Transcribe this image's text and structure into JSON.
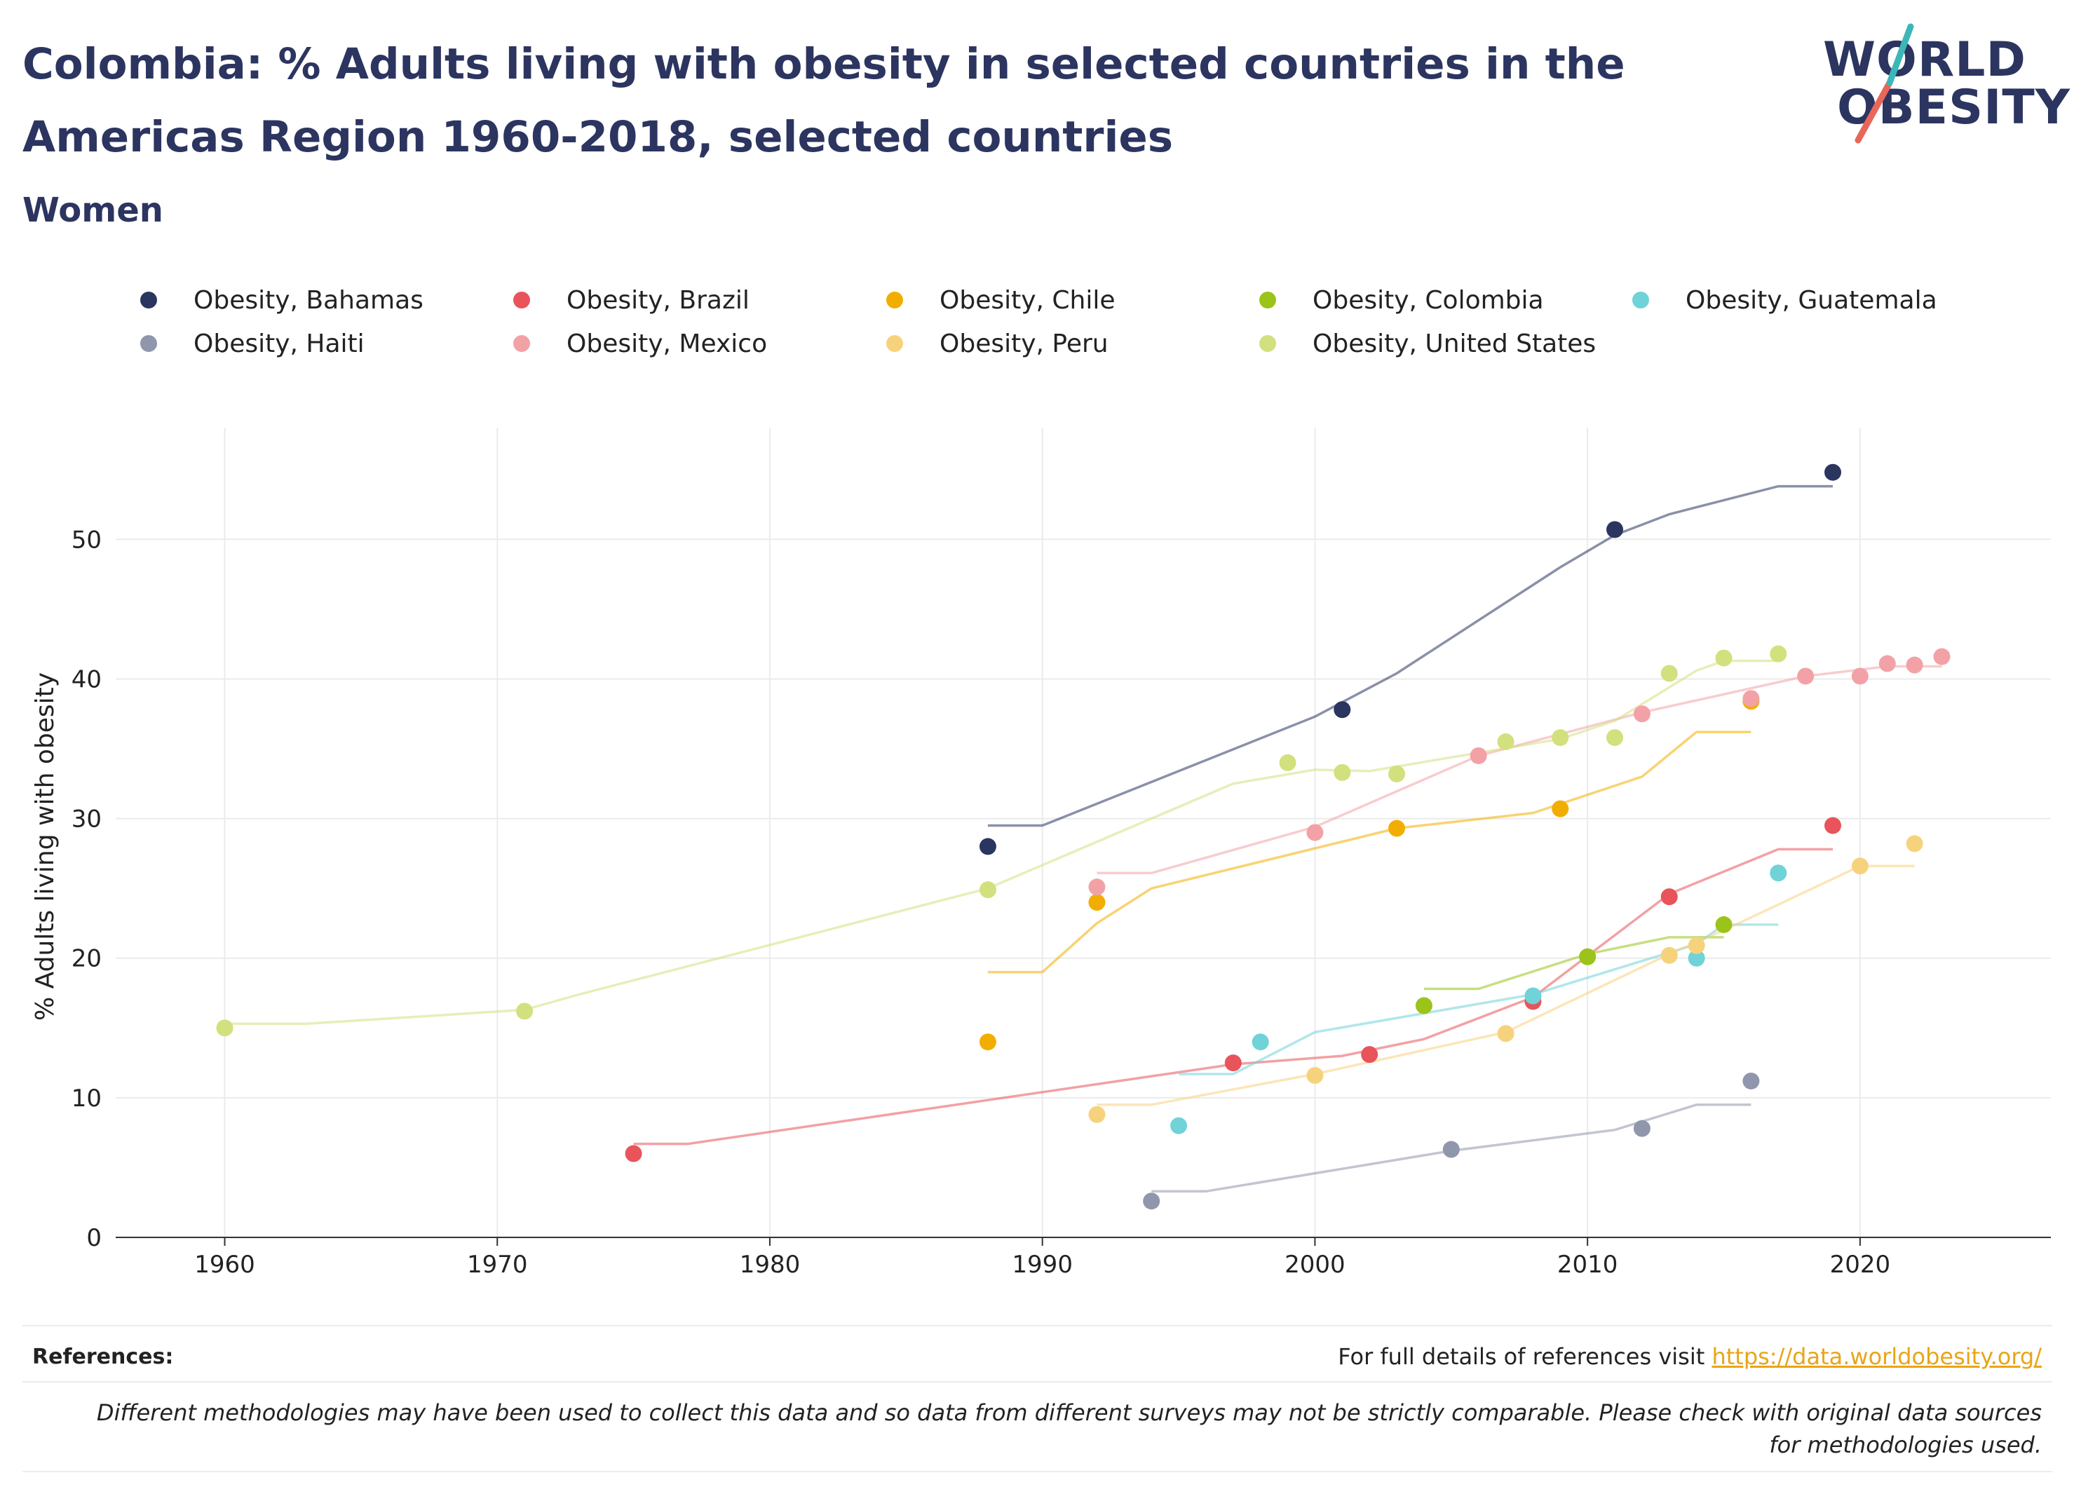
{
  "header": {
    "title": "Colombia: % Adults living with obesity in selected countries in the Americas Region 1960-2018, selected countries",
    "subtitle": "Women"
  },
  "logo": {
    "line1": "WORLD",
    "line2": "OBESITY"
  },
  "footer": {
    "references_label": "References:",
    "references_text": "For full details of references visit ",
    "references_link": "https://data.worldobesity.org/",
    "disclaimer": "Different methodologies may have been used to collect this data and so data from different surveys may not be strictly comparable. Please check with original data sources for methodologies used."
  },
  "colors": {
    "title": "#2c3560",
    "link": "#e8a517",
    "grid": "#ebebeb",
    "axis": "#333333"
  },
  "chart_data": {
    "type": "scatter",
    "title": "Colombia: % Adults living with obesity in selected countries in the Americas Region 1960-2018, selected countries",
    "subtitle": "Women",
    "xlabel": "",
    "ylabel": "% Adults living with obesity",
    "xlim": [
      1956,
      2027
    ],
    "ylim": [
      0,
      58
    ],
    "xticks": [
      1960,
      1970,
      1980,
      1990,
      2000,
      2010,
      2020
    ],
    "yticks": [
      0,
      10,
      20,
      30,
      40,
      50
    ],
    "grid": true,
    "legend_position": "top",
    "series": [
      {
        "name": "Obesity, Bahamas",
        "color": "#2a3560",
        "points": [
          [
            1988,
            28.0
          ],
          [
            2001,
            37.8
          ],
          [
            2011,
            50.7
          ],
          [
            2019,
            54.8
          ]
        ],
        "trend": [
          [
            1988,
            29.5
          ],
          [
            1990,
            29.5
          ],
          [
            2000,
            37.3
          ],
          [
            2003,
            40.4
          ],
          [
            2009,
            48.0
          ],
          [
            2011,
            50.3
          ],
          [
            2013,
            51.8
          ],
          [
            2017,
            53.8
          ],
          [
            2019,
            53.8
          ]
        ]
      },
      {
        "name": "Obesity, Brazil",
        "color": "#e8545a",
        "points": [
          [
            1975,
            6.0
          ],
          [
            1997,
            12.5
          ],
          [
            2002,
            13.1
          ],
          [
            2008,
            16.9
          ],
          [
            2013,
            24.4
          ],
          [
            2019,
            29.5
          ]
        ],
        "trend": [
          [
            1975,
            6.7
          ],
          [
            1977,
            6.7
          ],
          [
            1997,
            12.4
          ],
          [
            2001,
            13.0
          ],
          [
            2004,
            14.2
          ],
          [
            2008,
            17.2
          ],
          [
            2013,
            24.6
          ],
          [
            2017,
            27.8
          ],
          [
            2019,
            27.8
          ]
        ]
      },
      {
        "name": "Obesity, Chile",
        "color": "#f2ae00",
        "points": [
          [
            1988,
            14.0
          ],
          [
            1992,
            24.0
          ],
          [
            2003,
            29.3
          ],
          [
            2009,
            30.7
          ],
          [
            2016,
            38.4
          ]
        ],
        "trend": [
          [
            1988,
            19.0
          ],
          [
            1990,
            19.0
          ],
          [
            1992,
            22.5
          ],
          [
            1994,
            25.0
          ],
          [
            2003,
            29.3
          ],
          [
            2008,
            30.4
          ],
          [
            2012,
            33.0
          ],
          [
            2014,
            36.2
          ],
          [
            2016,
            36.2
          ]
        ]
      },
      {
        "name": "Obesity, Colombia",
        "color": "#9bc31a",
        "points": [
          [
            2004,
            16.6
          ],
          [
            2010,
            20.1
          ],
          [
            2015,
            22.4
          ]
        ],
        "trend": [
          [
            2004,
            17.8
          ],
          [
            2006,
            17.8
          ],
          [
            2010,
            20.3
          ],
          [
            2013,
            21.5
          ],
          [
            2015,
            21.5
          ]
        ]
      },
      {
        "name": "Obesity, Guatemala",
        "color": "#6fd3d8",
        "points": [
          [
            1995,
            8.0
          ],
          [
            1998,
            14.0
          ],
          [
            2008,
            17.3
          ],
          [
            2014,
            20.0
          ],
          [
            2017,
            26.1
          ]
        ],
        "trend": [
          [
            1995,
            11.7
          ],
          [
            1997,
            11.7
          ],
          [
            2000,
            14.7
          ],
          [
            2008,
            17.4
          ],
          [
            2014,
            21.0
          ],
          [
            2015,
            22.4
          ],
          [
            2017,
            22.4
          ]
        ]
      },
      {
        "name": "Obesity, Haiti",
        "color": "#9096ab",
        "points": [
          [
            1994,
            2.6
          ],
          [
            2005,
            6.3
          ],
          [
            2012,
            7.8
          ],
          [
            2016,
            11.2
          ]
        ],
        "trend": [
          [
            1994,
            3.3
          ],
          [
            1996,
            3.3
          ],
          [
            2005,
            6.2
          ],
          [
            2011,
            7.7
          ],
          [
            2014,
            9.5
          ],
          [
            2016,
            9.5
          ]
        ]
      },
      {
        "name": "Obesity, Mexico",
        "color": "#f2a2a6",
        "points": [
          [
            1992,
            25.1
          ],
          [
            2000,
            29.0
          ],
          [
            2006,
            34.5
          ],
          [
            2012,
            37.5
          ],
          [
            2016,
            38.6
          ],
          [
            2018,
            40.2
          ],
          [
            2020,
            40.2
          ],
          [
            2021,
            41.1
          ],
          [
            2022,
            41.0
          ],
          [
            2023,
            41.6
          ]
        ],
        "trend": [
          [
            1992,
            26.1
          ],
          [
            1994,
            26.1
          ],
          [
            2000,
            29.4
          ],
          [
            2006,
            34.5
          ],
          [
            2012,
            37.6
          ],
          [
            2018,
            40.2
          ],
          [
            2021,
            40.9
          ],
          [
            2023,
            40.9
          ]
        ]
      },
      {
        "name": "Obesity, Peru",
        "color": "#f7d27d",
        "points": [
          [
            1992,
            8.8
          ],
          [
            2000,
            11.6
          ],
          [
            2007,
            14.6
          ],
          [
            2013,
            20.2
          ],
          [
            2014,
            20.9
          ],
          [
            2020,
            26.6
          ],
          [
            2022,
            28.2
          ]
        ],
        "trend": [
          [
            1992,
            9.5
          ],
          [
            1994,
            9.5
          ],
          [
            2000,
            11.7
          ],
          [
            2007,
            14.7
          ],
          [
            2013,
            20.3
          ],
          [
            2015,
            22.0
          ],
          [
            2020,
            26.6
          ],
          [
            2022,
            26.6
          ]
        ]
      },
      {
        "name": "Obesity, United States",
        "color": "#d3e07e",
        "points": [
          [
            1960,
            15.0
          ],
          [
            1971,
            16.2
          ],
          [
            1988,
            24.9
          ],
          [
            1999,
            34.0
          ],
          [
            2001,
            33.3
          ],
          [
            2003,
            33.2
          ],
          [
            2007,
            35.5
          ],
          [
            2009,
            35.8
          ],
          [
            2011,
            35.8
          ],
          [
            2013,
            40.4
          ],
          [
            2015,
            41.5
          ],
          [
            2017,
            41.8
          ]
        ],
        "trend": [
          [
            1960,
            15.3
          ],
          [
            1963,
            15.3
          ],
          [
            1971,
            16.3
          ],
          [
            1973,
            17.4
          ],
          [
            1988,
            25.0
          ],
          [
            1997,
            32.5
          ],
          [
            2000,
            33.5
          ],
          [
            2002,
            33.4
          ],
          [
            2009,
            35.7
          ],
          [
            2011,
            37.0
          ],
          [
            2014,
            40.6
          ],
          [
            2015,
            41.3
          ],
          [
            2017,
            41.3
          ]
        ]
      }
    ]
  }
}
